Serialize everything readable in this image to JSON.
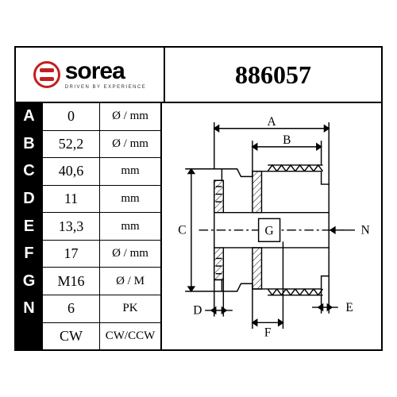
{
  "brand": {
    "name": "sorea",
    "tagline": "DRIVEN BY EXPERIENCE",
    "icon_color": "#c41e1e"
  },
  "part_number": "886057",
  "table": {
    "columns": [
      "label",
      "value",
      "unit"
    ],
    "rows": [
      {
        "label": "A",
        "value": "0",
        "unit": "Ø / mm"
      },
      {
        "label": "B",
        "value": "52,2",
        "unit": "Ø / mm"
      },
      {
        "label": "C",
        "value": "40,6",
        "unit": "mm"
      },
      {
        "label": "D",
        "value": "11",
        "unit": "mm"
      },
      {
        "label": "E",
        "value": "13,3",
        "unit": "mm"
      },
      {
        "label": "F",
        "value": "17",
        "unit": "Ø / mm"
      },
      {
        "label": "G",
        "value": "M16",
        "unit": "Ø / M"
      },
      {
        "label": "N",
        "value": "6",
        "unit": "PK"
      },
      {
        "label": "",
        "value": "CW",
        "unit": "CW/CCW"
      }
    ]
  },
  "diagram": {
    "type": "technical-cross-section",
    "labels": [
      "A",
      "B",
      "C",
      "D",
      "E",
      "F",
      "G",
      "N"
    ],
    "stroke": "#000000",
    "fill": "#ffffff",
    "font_family": "Times New Roman",
    "label_fontsize": 16,
    "line_width": 1.5,
    "arrow_size": 5
  }
}
